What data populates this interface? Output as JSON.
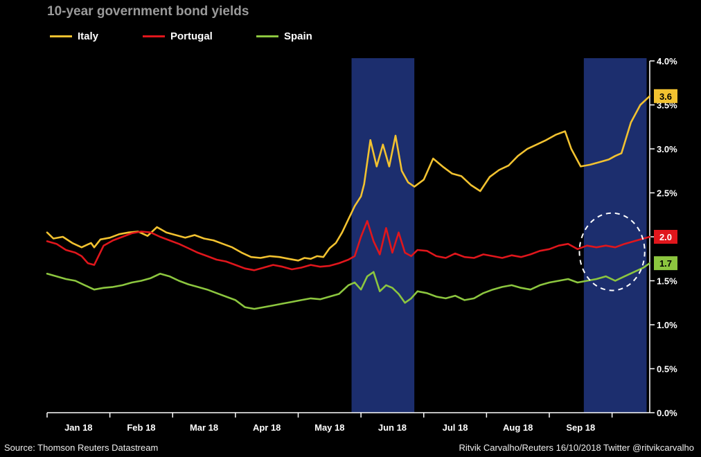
{
  "chart_data": {
    "type": "line",
    "title": "10-year government bond yields",
    "xlabel": "",
    "ylabel": "",
    "ylim": [
      0,
      4
    ],
    "y_ticks": [
      {
        "value": 0,
        "label": "0.0%"
      },
      {
        "value": 0.5,
        "label": "0.5%"
      },
      {
        "value": 1.0,
        "label": "1.0%"
      },
      {
        "value": 1.5,
        "label": "1.5%"
      },
      {
        "value": 2.0,
        "label": "2.0%"
      },
      {
        "value": 2.5,
        "label": "2.5%"
      },
      {
        "value": 3.0,
        "label": "3.0%"
      },
      {
        "value": 3.5,
        "label": "3.5%"
      },
      {
        "value": 4.0,
        "label": "4.0%"
      }
    ],
    "x_range": [
      0,
      9.6
    ],
    "month_labels": [
      {
        "pos": 0.5,
        "label": "Jan 18"
      },
      {
        "pos": 1.5,
        "label": "Feb 18"
      },
      {
        "pos": 2.5,
        "label": "Mar 18"
      },
      {
        "pos": 3.5,
        "label": "Apr 18"
      },
      {
        "pos": 4.5,
        "label": "May 18"
      },
      {
        "pos": 5.5,
        "label": "Jun 18"
      },
      {
        "pos": 6.5,
        "label": "Jul 18"
      },
      {
        "pos": 7.5,
        "label": "Aug 18"
      },
      {
        "pos": 8.5,
        "label": "Sep 18"
      }
    ],
    "month_boundaries": [
      0,
      1,
      2,
      3,
      4,
      5,
      6,
      7,
      8,
      9
    ],
    "highlight_periods": [
      [
        4.85,
        5.85
      ],
      [
        8.55,
        9.55
      ]
    ],
    "circle_annotation": {
      "center_x": 9.0,
      "center_y": 1.83,
      "radius_x": 0.52,
      "radius_y": 0.44
    },
    "series": [
      {
        "name": "Italy",
        "color": "#f2c230",
        "end_label": "3.6",
        "x": [
          0,
          0.1,
          0.25,
          0.4,
          0.55,
          0.7,
          0.75,
          0.85,
          1.0,
          1.15,
          1.3,
          1.45,
          1.6,
          1.75,
          1.9,
          2.05,
          2.2,
          2.35,
          2.5,
          2.65,
          2.8,
          2.95,
          3.1,
          3.25,
          3.4,
          3.55,
          3.7,
          3.85,
          4.0,
          4.1,
          4.2,
          4.3,
          4.4,
          4.5,
          4.6,
          4.7,
          4.8,
          4.9,
          5.0,
          5.05,
          5.15,
          5.25,
          5.35,
          5.45,
          5.55,
          5.65,
          5.75,
          5.85,
          6.0,
          6.15,
          6.3,
          6.45,
          6.6,
          6.75,
          6.9,
          7.05,
          7.2,
          7.35,
          7.5,
          7.65,
          7.8,
          7.95,
          8.1,
          8.25,
          8.35,
          8.5,
          8.65,
          8.8,
          8.95,
          9.05,
          9.15,
          9.3,
          9.45,
          9.6
        ],
        "y": [
          2.05,
          1.98,
          2.0,
          1.93,
          1.88,
          1.93,
          1.88,
          1.97,
          1.99,
          2.03,
          2.05,
          2.06,
          2.01,
          2.11,
          2.05,
          2.02,
          1.99,
          2.02,
          1.98,
          1.96,
          1.92,
          1.88,
          1.82,
          1.77,
          1.76,
          1.78,
          1.77,
          1.75,
          1.73,
          1.76,
          1.75,
          1.78,
          1.77,
          1.87,
          1.93,
          2.05,
          2.2,
          2.35,
          2.46,
          2.6,
          3.1,
          2.8,
          3.05,
          2.8,
          3.15,
          2.75,
          2.62,
          2.57,
          2.65,
          2.89,
          2.8,
          2.72,
          2.69,
          2.59,
          2.52,
          2.68,
          2.76,
          2.81,
          2.92,
          3.0,
          3.05,
          3.1,
          3.16,
          3.2,
          3.0,
          2.8,
          2.82,
          2.85,
          2.88,
          2.92,
          2.95,
          3.3,
          3.5,
          3.6
        ]
      },
      {
        "name": "Portugal",
        "color": "#e0161c",
        "end_label": "2.0",
        "x": [
          0,
          0.15,
          0.3,
          0.45,
          0.55,
          0.65,
          0.75,
          0.9,
          1.05,
          1.2,
          1.35,
          1.5,
          1.65,
          1.8,
          1.95,
          2.1,
          2.25,
          2.4,
          2.55,
          2.7,
          2.85,
          3.0,
          3.15,
          3.3,
          3.45,
          3.6,
          3.75,
          3.9,
          4.05,
          4.2,
          4.35,
          4.5,
          4.65,
          4.8,
          4.9,
          5.0,
          5.1,
          5.2,
          5.3,
          5.4,
          5.5,
          5.6,
          5.7,
          5.8,
          5.9,
          6.05,
          6.2,
          6.35,
          6.5,
          6.65,
          6.8,
          6.95,
          7.1,
          7.25,
          7.4,
          7.55,
          7.7,
          7.85,
          8.0,
          8.15,
          8.3,
          8.45,
          8.6,
          8.75,
          8.9,
          9.05,
          9.2,
          9.35,
          9.5,
          9.6
        ],
        "y": [
          1.95,
          1.92,
          1.85,
          1.82,
          1.78,
          1.7,
          1.68,
          1.9,
          1.96,
          2.0,
          2.04,
          2.06,
          2.05,
          2.0,
          1.96,
          1.92,
          1.87,
          1.82,
          1.78,
          1.74,
          1.72,
          1.68,
          1.64,
          1.62,
          1.65,
          1.68,
          1.66,
          1.63,
          1.65,
          1.68,
          1.66,
          1.67,
          1.7,
          1.74,
          1.78,
          2.0,
          2.18,
          1.95,
          1.8,
          2.1,
          1.82,
          2.05,
          1.82,
          1.78,
          1.85,
          1.84,
          1.78,
          1.76,
          1.81,
          1.77,
          1.76,
          1.8,
          1.78,
          1.76,
          1.79,
          1.77,
          1.8,
          1.84,
          1.86,
          1.9,
          1.92,
          1.86,
          1.9,
          1.88,
          1.9,
          1.88,
          1.92,
          1.95,
          1.98,
          2.0
        ]
      },
      {
        "name": "Spain",
        "color": "#8cc63f",
        "end_label": "1.7",
        "x": [
          0,
          0.15,
          0.3,
          0.45,
          0.6,
          0.75,
          0.9,
          1.05,
          1.2,
          1.35,
          1.5,
          1.65,
          1.8,
          1.95,
          2.1,
          2.25,
          2.4,
          2.55,
          2.7,
          2.85,
          3.0,
          3.15,
          3.3,
          3.45,
          3.6,
          3.75,
          3.9,
          4.05,
          4.2,
          4.35,
          4.5,
          4.65,
          4.8,
          4.9,
          5.0,
          5.1,
          5.2,
          5.3,
          5.4,
          5.5,
          5.6,
          5.7,
          5.8,
          5.9,
          6.05,
          6.2,
          6.35,
          6.5,
          6.65,
          6.8,
          6.95,
          7.1,
          7.25,
          7.4,
          7.55,
          7.7,
          7.85,
          8.0,
          8.15,
          8.3,
          8.45,
          8.6,
          8.75,
          8.9,
          9.05,
          9.2,
          9.35,
          9.5,
          9.6
        ],
        "y": [
          1.58,
          1.55,
          1.52,
          1.5,
          1.45,
          1.4,
          1.42,
          1.43,
          1.45,
          1.48,
          1.5,
          1.53,
          1.58,
          1.55,
          1.5,
          1.46,
          1.43,
          1.4,
          1.36,
          1.32,
          1.28,
          1.2,
          1.18,
          1.2,
          1.22,
          1.24,
          1.26,
          1.28,
          1.3,
          1.29,
          1.32,
          1.35,
          1.45,
          1.48,
          1.4,
          1.55,
          1.6,
          1.38,
          1.45,
          1.42,
          1.35,
          1.25,
          1.3,
          1.38,
          1.36,
          1.32,
          1.3,
          1.33,
          1.28,
          1.3,
          1.36,
          1.4,
          1.43,
          1.45,
          1.42,
          1.4,
          1.45,
          1.48,
          1.5,
          1.52,
          1.48,
          1.5,
          1.52,
          1.55,
          1.5,
          1.55,
          1.6,
          1.65,
          1.7
        ]
      }
    ]
  },
  "footer": {
    "source": "Source: Thomson Reuters Datastream",
    "credit": "Ritvik Carvalho/Reuters 16/10/2018 Twitter @ritvikcarvalho"
  }
}
